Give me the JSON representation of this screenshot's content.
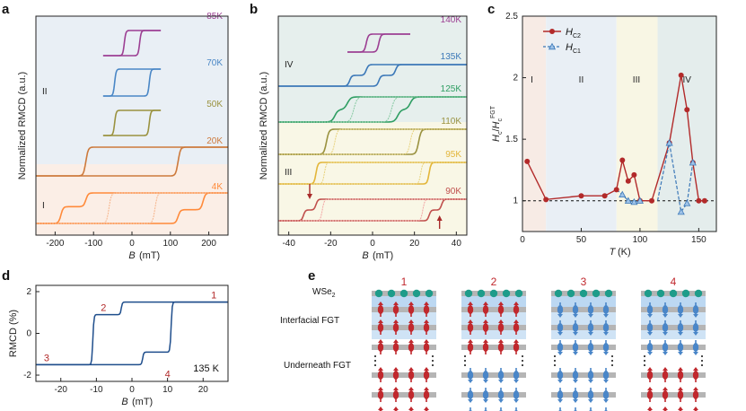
{
  "chart_data": [
    {
      "panel": "a",
      "type": "line",
      "ylabel": "Normalized RMCD (a.u.)",
      "xlabel": "B (mT)",
      "xlim": [
        -250,
        250
      ],
      "xticks": [
        -200,
        -100,
        0,
        100,
        200
      ],
      "region_labels": [
        "II",
        "I"
      ],
      "series": [
        {
          "name": "85K",
          "color": "#9c3f93",
          "coercive_mT": 20
        },
        {
          "name": "70K",
          "color": "#4a87c6",
          "coercive_mT": 45
        },
        {
          "name": "50K",
          "color": "#9a9240",
          "coercive_mT": 45
        },
        {
          "name": "20K",
          "color": "#cd7a3c",
          "coercive_mT": 120
        },
        {
          "name": "4K",
          "color": "#ff8a3a",
          "coercive_inner_mT": 120,
          "coercive_outer_mT": 185
        }
      ]
    },
    {
      "panel": "b",
      "type": "line",
      "ylabel": "Normalized RMCD (a.u.)",
      "xlabel": "B (mT)",
      "xlim": [
        -45,
        45
      ],
      "xticks": [
        -40,
        -20,
        0,
        20,
        40
      ],
      "region_labels": [
        "IV",
        "III"
      ],
      "series": [
        {
          "name": "140K",
          "color": "#9c3f93",
          "coercive_mT": 3
        },
        {
          "name": "135K",
          "color": "#3b78b8",
          "coercive_inner_mT": 3,
          "coercive_outer_mT": 11
        },
        {
          "name": "125K",
          "color": "#2f9e63",
          "coercive_inner_mT": 12,
          "coercive_outer_mT": 18
        },
        {
          "name": "110K",
          "color": "#9a9240",
          "coercive_mT": 22
        },
        {
          "name": "95K",
          "color": "#e3b63a",
          "coercive_mT": 27
        },
        {
          "name": "90K",
          "color": "#c0504d",
          "coercive_inner_mT": 27,
          "coercive_outer_mT": 33
        }
      ]
    },
    {
      "panel": "c",
      "type": "line",
      "xlabel": "T (K)",
      "ylabel": "Hc/Hc^FGT",
      "xlim": [
        0,
        165
      ],
      "ylim": [
        0.75,
        2.5
      ],
      "xticks": [
        0,
        50,
        100,
        150
      ],
      "yticks": [
        1,
        1.5,
        2,
        2.5
      ],
      "region_labels": [
        "I",
        "II",
        "III",
        "IV"
      ],
      "series": [
        {
          "name": "HC2",
          "color": "#b22a2a",
          "x": [
            4,
            20,
            50,
            70,
            80,
            85,
            90,
            95,
            100,
            110,
            125,
            135,
            140,
            145,
            150,
            155
          ],
          "y": [
            1.32,
            1.01,
            1.04,
            1.04,
            1.09,
            1.33,
            1.16,
            1.21,
            1.0,
            1.0,
            1.47,
            2.02,
            1.74,
            1.31,
            1.0,
            1.0
          ]
        },
        {
          "name": "HC1",
          "color": "#3b78b8",
          "x": [
            85,
            90,
            95,
            100,
            125,
            135,
            140,
            145
          ],
          "y": [
            1.05,
            1.0,
            0.99,
            1.0,
            1.47,
            0.91,
            0.98,
            1.31
          ]
        }
      ],
      "reference_line_y": 1
    },
    {
      "panel": "d",
      "type": "line",
      "xlabel": "B (mT)",
      "ylabel": "RMCD (%)",
      "xlim": [
        -27,
        27
      ],
      "ylim": [
        -2.3,
        2.3
      ],
      "xticks": [
        -20,
        -10,
        0,
        10,
        20
      ],
      "yticks": [
        -2,
        0,
        2
      ],
      "temperature_label": "135 K",
      "state_labels": [
        "1",
        "2",
        "3",
        "4"
      ],
      "series": [
        {
          "name": "135 K",
          "color": "#1f4e8c",
          "coercive_inner_mT": 3,
          "coercive_outer_mT": 11,
          "saturation_pct": 1.5,
          "intermediate_pct": 0.9
        }
      ]
    }
  ],
  "labels": {
    "panel_a": "a",
    "panel_b": "b",
    "panel_c": "c",
    "panel_d": "d",
    "panel_e": "e",
    "wse2": "WSe2",
    "interfacial": "Interfacial FGT",
    "underneath": "Underneath FGT",
    "config_numbers": [
      "1",
      "2",
      "3",
      "4"
    ]
  },
  "colors": {
    "spin_up": "#c0282d",
    "spin_down": "#4a86c8",
    "wse2": "#1e9c8a",
    "layer": "#b5b5b5"
  }
}
